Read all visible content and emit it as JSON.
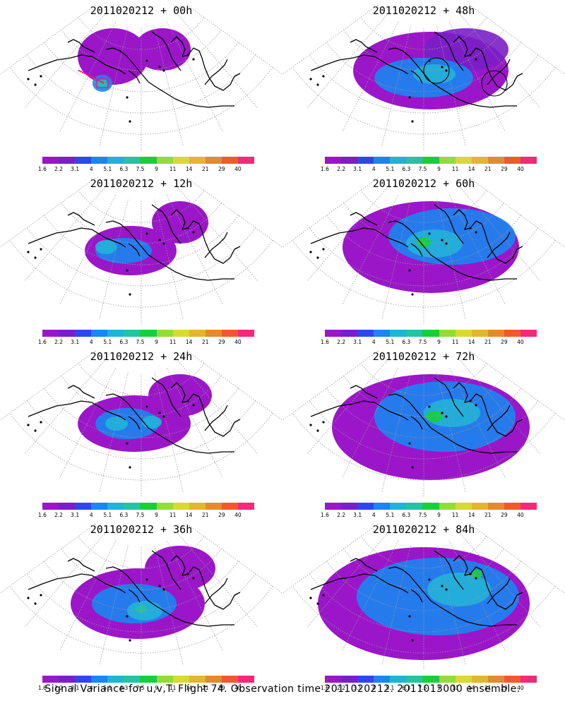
{
  "panels": [
    {
      "title": "2011020212 + 00h",
      "level": 0
    },
    {
      "title": "2011020212 + 48h",
      "level": 4
    },
    {
      "title": "2011020212 + 12h",
      "level": 1
    },
    {
      "title": "2011020212 + 60h",
      "level": 5
    },
    {
      "title": "2011020212 + 24h",
      "level": 2
    },
    {
      "title": "2011020212 + 72h",
      "level": 6
    },
    {
      "title": "2011020212 + 36h",
      "level": 3
    },
    {
      "title": "2011020212 + 84h",
      "level": 7
    }
  ],
  "colorbar": {
    "colors": [
      "#9b16c9",
      "#7a1ec8",
      "#2f47e8",
      "#1a86f0",
      "#22b2d8",
      "#27c2a2",
      "#18cf3a",
      "#92dc3a",
      "#d8d836",
      "#e3b532",
      "#e38a30",
      "#ef5a2c",
      "#f22a78"
    ],
    "labels": [
      "1.6",
      "2.2",
      "3.1",
      "4",
      "5.1",
      "6.3",
      "7.5",
      "9",
      "11",
      "14",
      "21",
      "29",
      "40"
    ]
  },
  "footer": "Signal Variance for u,v,T. Flight 74. Observation time 2011020212. 2011013000 ensemble."
}
